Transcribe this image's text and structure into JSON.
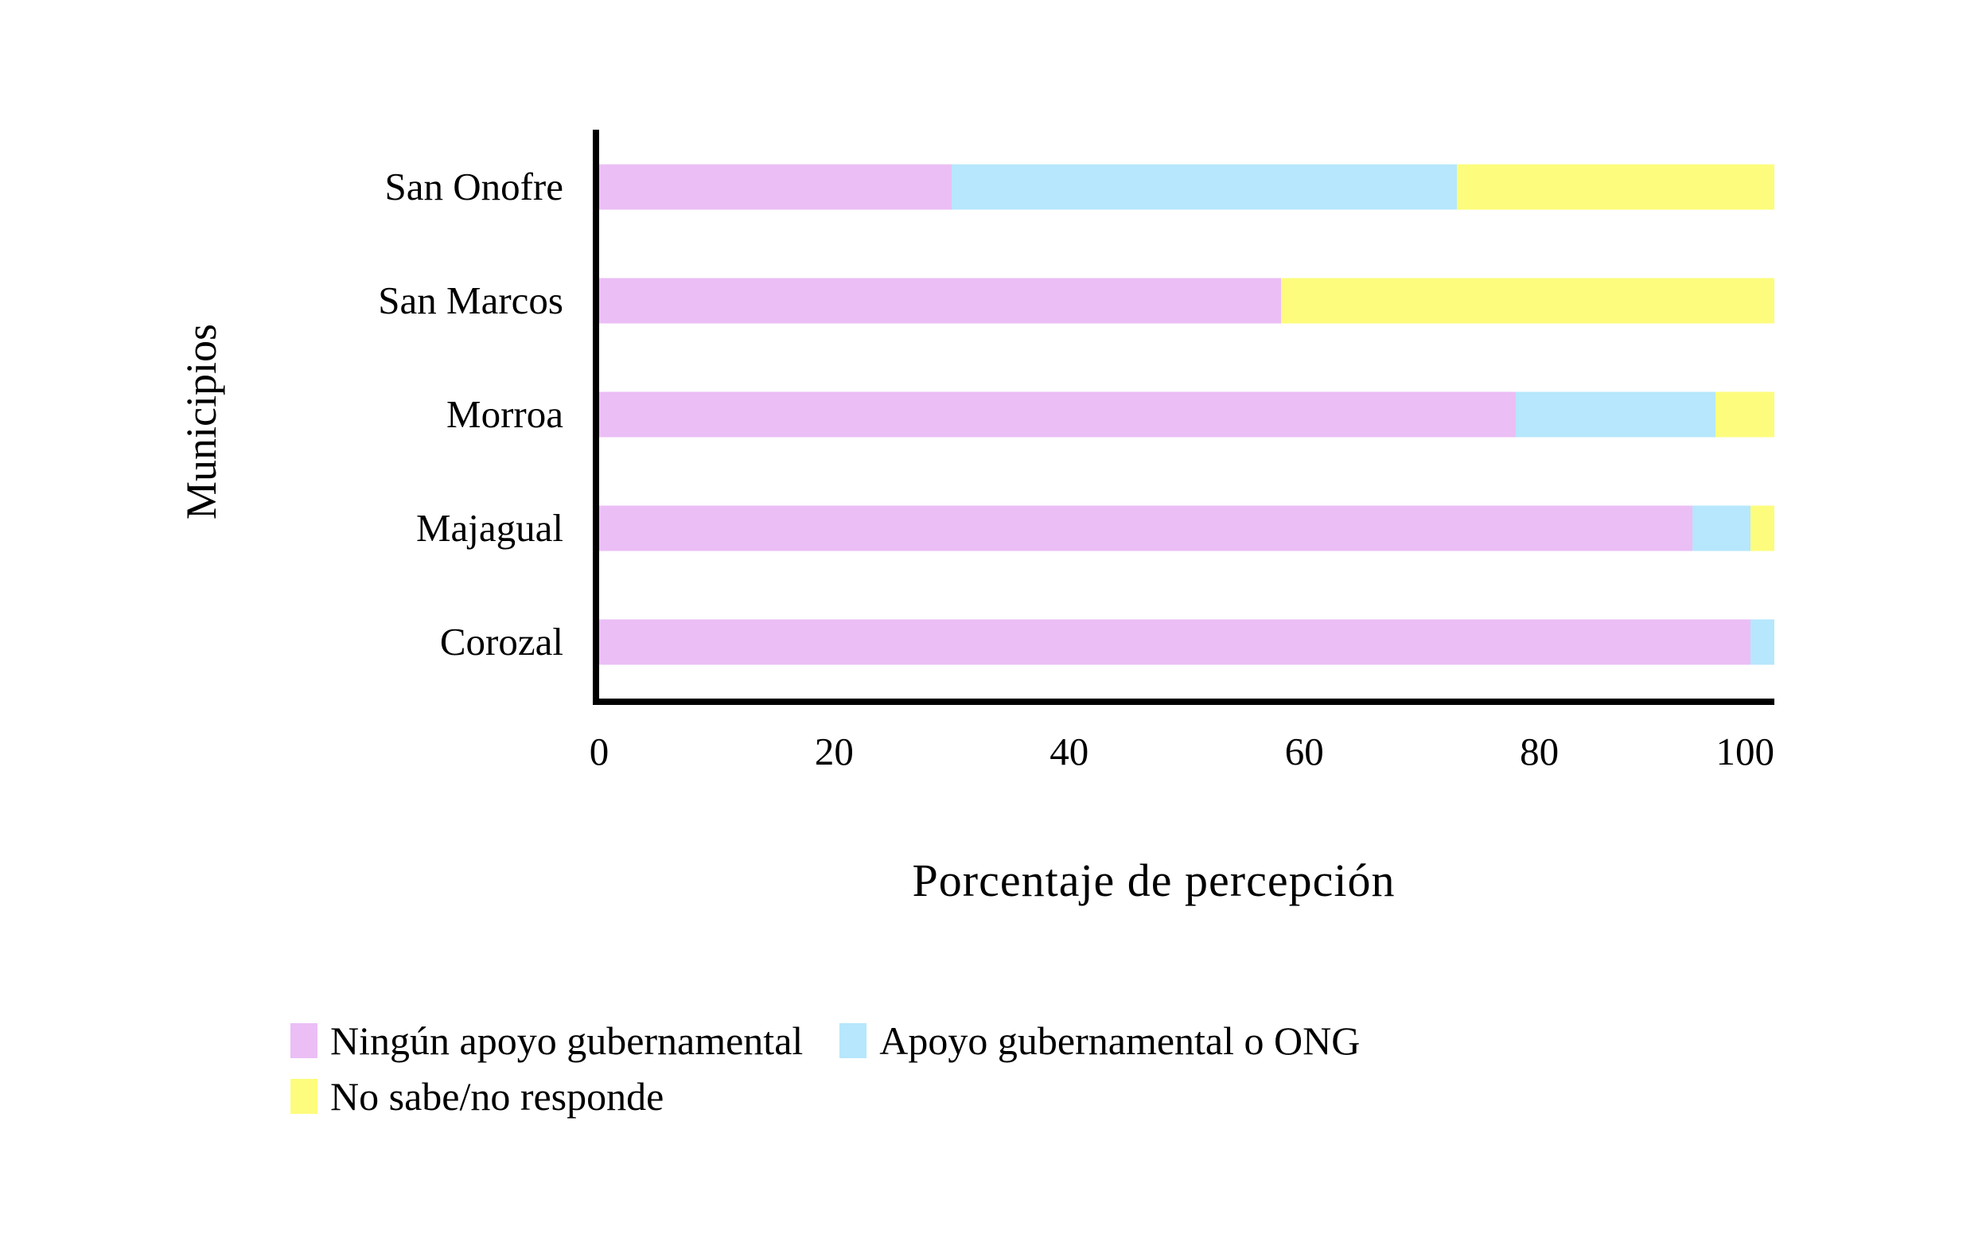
{
  "figure": {
    "background": "#ffffff",
    "axis_color": "#000000",
    "text_color": "#000000"
  },
  "chart_data": {
    "type": "bar",
    "orientation": "horizontal-stacked",
    "title": "",
    "xlabel": "Porcentaje de percepción",
    "ylabel": "Municipios",
    "categories": [
      "San Onofre",
      "San Marcos",
      "Morroa",
      "Majagual",
      "Corozal"
    ],
    "series": [
      {
        "name": "Ningún apoyo gubernamental",
        "color": "#EBBEF5",
        "values": [
          30,
          58,
          78,
          93,
          98
        ]
      },
      {
        "name": "Apoyo gubernamental o ONG",
        "color": "#B6E7FC",
        "values": [
          43,
          0,
          17,
          5,
          2
        ]
      },
      {
        "name": "No sabe/no responde",
        "color": "#FDFC7D",
        "values": [
          27,
          42,
          5,
          2,
          0
        ]
      }
    ],
    "xlim": [
      0,
      100
    ],
    "xticks": [
      0,
      20,
      40,
      60,
      80,
      100
    ],
    "grid": false,
    "legend_position": "bottom-left"
  }
}
